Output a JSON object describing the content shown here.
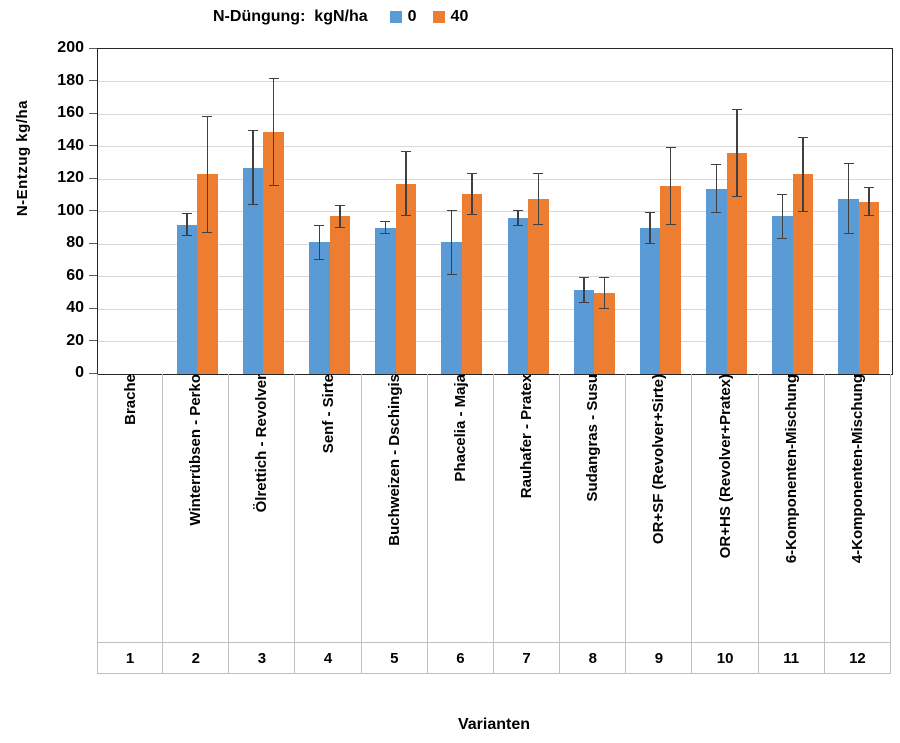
{
  "legend": {
    "title": "N-Düngung:  kgN/ha",
    "items": [
      {
        "label": "0",
        "color": "#5B9BD5"
      },
      {
        "label": "40",
        "color": "#ED7D31"
      }
    ]
  },
  "axes": {
    "y_title": "N-Entzug kg/ha",
    "x_title": "Varianten"
  },
  "chart_data": {
    "type": "bar",
    "title": "N-Düngung:  kgN/ha",
    "ylabel": "N-Entzug kg/ha",
    "xlabel": "Varianten",
    "ylim": [
      0,
      200
    ],
    "ytick_step": 20,
    "grid": true,
    "legend_position": "top",
    "error_bars": true,
    "categories": [
      "Brache",
      "Winterrübsen - Perko",
      "Ölrettich - Revolver",
      "Senf - Sirte",
      "Buchweizen - Dschingis",
      "Phacelia - Maja",
      "Rauhafer - Pratex",
      "Sudangras - Susu",
      "OR+SF (Revolver+Sirte)",
      "OR+HS (Revolver+Pratex)",
      "6-Komponenten-Mischung",
      "4-Komponenten-Mischung"
    ],
    "category_numbers": [
      "1",
      "2",
      "3",
      "4",
      "5",
      "6",
      "7",
      "8",
      "9",
      "10",
      "11",
      "12"
    ],
    "series": [
      {
        "name": "0",
        "color": "#5B9BD5",
        "values": [
          null,
          92,
          127,
          81,
          90,
          81,
          96,
          52,
          90,
          114,
          97,
          108
        ],
        "errors": [
          null,
          7,
          23,
          11,
          4,
          20,
          5,
          8,
          10,
          15,
          14,
          22
        ]
      },
      {
        "name": "40",
        "color": "#ED7D31",
        "values": [
          null,
          123,
          149,
          97,
          117,
          111,
          108,
          50,
          116,
          136,
          123,
          106
        ],
        "errors": [
          null,
          36,
          33,
          7,
          20,
          13,
          16,
          10,
          24,
          27,
          23,
          9
        ]
      }
    ]
  },
  "colors": {
    "bar_blue": "#5B9BD5",
    "bar_orange": "#ED7D31",
    "error_bar": "#404040",
    "gridline": "#D9D9D9",
    "axis_border": "#262626",
    "separator": "#BFBFBF"
  }
}
